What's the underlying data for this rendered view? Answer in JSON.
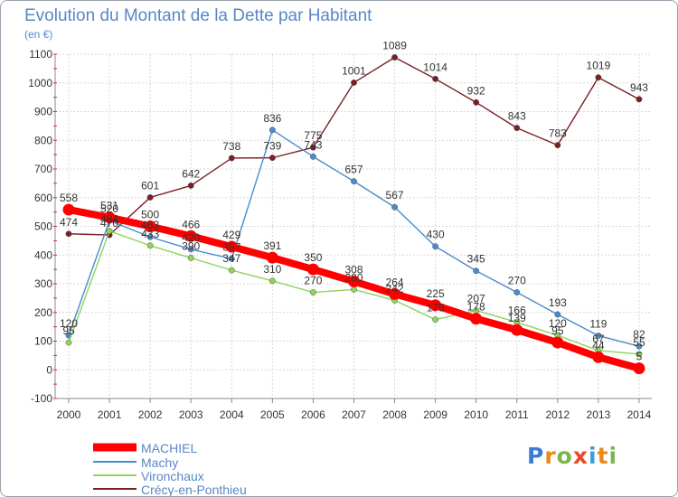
{
  "title": "Evolution du Montant de la Dette par Habitant",
  "unit_label": "(en €)",
  "logo_text": "Proxiti",
  "logo_colors": [
    "#3a7bd5",
    "#e88a1a",
    "#7ab648",
    "#e84a2a",
    "#3aa0d5",
    "#e88a1a",
    "#7ab648"
  ],
  "chart_data": {
    "type": "line",
    "x": [
      2000,
      2001,
      2002,
      2003,
      2004,
      2005,
      2006,
      2007,
      2008,
      2009,
      2010,
      2011,
      2012,
      2013,
      2014
    ],
    "ylim": [
      -100,
      1100
    ],
    "yticks": [
      -100,
      0,
      100,
      200,
      300,
      400,
      500,
      600,
      700,
      800,
      900,
      1000,
      1100
    ],
    "grid": true,
    "legend_position": "bottom-left",
    "series": [
      {
        "name": "MACHIEL",
        "color": "#ff0000",
        "values": [
          558,
          531,
          500,
          466,
          429,
          391,
          350,
          308,
          264,
          225,
          178,
          139,
          95,
          44,
          5
        ],
        "labels": [
          "558",
          "531",
          "500",
          "466",
          "429",
          "391",
          "350",
          "308",
          "264",
          "225",
          "178",
          "139",
          "95",
          "44",
          "5"
        ]
      },
      {
        "name": "Machy",
        "color": "#4a8cc9",
        "values": [
          120,
          520,
          463,
          420,
          387,
          836,
          743,
          657,
          567,
          430,
          345,
          270,
          193,
          119,
          82
        ],
        "labels": [
          "120",
          "520",
          "463",
          "420",
          "387",
          "836",
          "743",
          "657",
          "567",
          "430",
          "345",
          "270",
          "193",
          "119",
          "82"
        ]
      },
      {
        "name": "Vironchaux",
        "color": "#8ed45a",
        "values": [
          95,
          484,
          433,
          390,
          347,
          310,
          270,
          280,
          242,
          175,
          207,
          166,
          120,
          67,
          55
        ],
        "labels": [
          "95",
          "484",
          "433",
          "390",
          "347",
          "310",
          "270",
          "280",
          "242",
          "175",
          "207",
          "166",
          "120",
          "67",
          "55"
        ]
      },
      {
        "name": "Crécy-en-Ponthieu",
        "color": "#7b1f24",
        "values": [
          474,
          470,
          601,
          642,
          738,
          739,
          775,
          1001,
          1089,
          1014,
          932,
          843,
          783,
          1019,
          943
        ],
        "labels": [
          "474",
          "470",
          "601",
          "642",
          "738",
          "739",
          "775",
          "1001",
          "1089",
          "1014",
          "932",
          "843",
          "783",
          "1019",
          "943"
        ]
      }
    ]
  }
}
